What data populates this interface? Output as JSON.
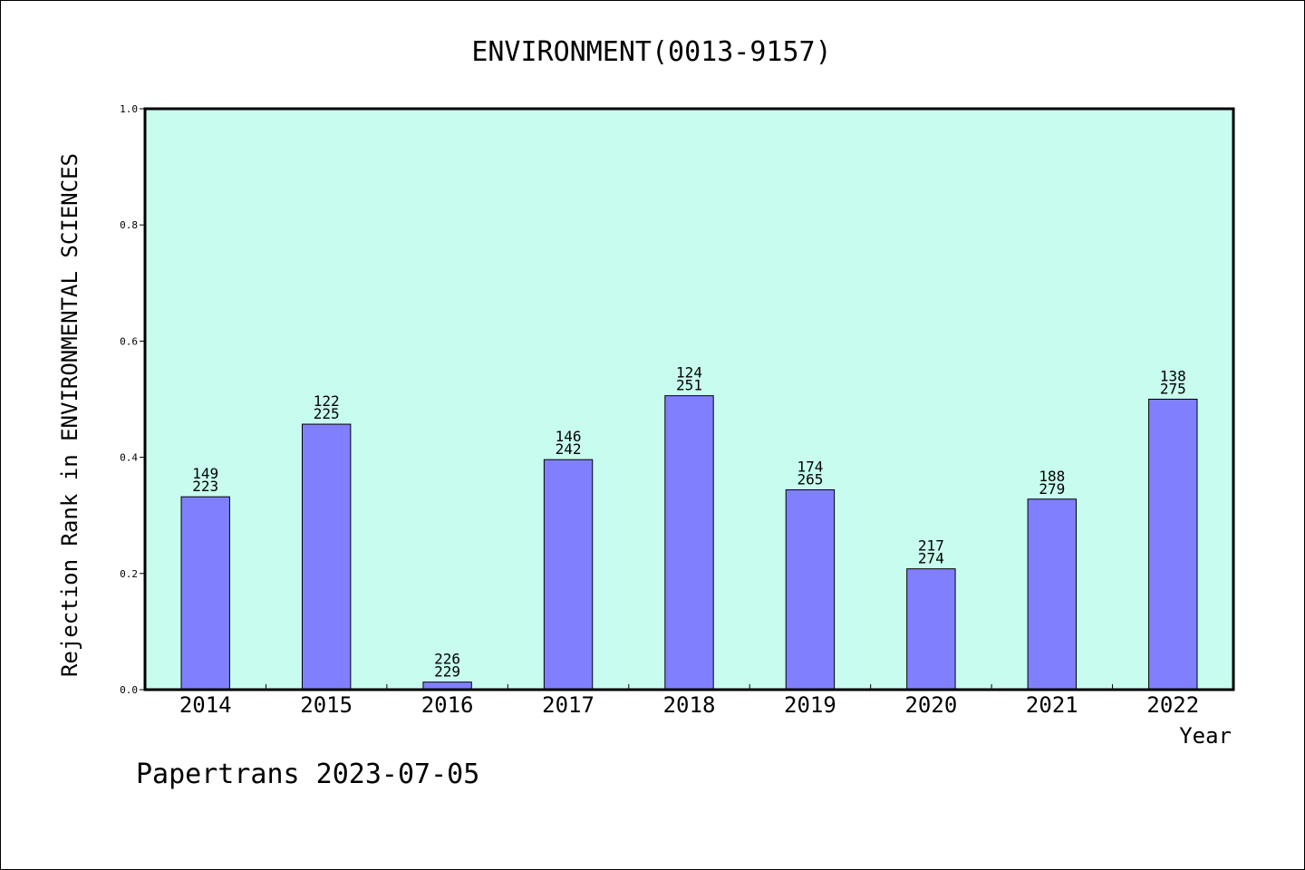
{
  "colors": {
    "plot_background": "#c8fcee",
    "bar_fill": "#8080ff",
    "bar_stroke": "#000000",
    "frame": "#000000"
  },
  "footer": "Papertrans 2023-07-05",
  "chart_data": {
    "type": "bar",
    "title": "ENVIRONMENT(0013-9157)",
    "xlabel": "Year",
    "ylabel": "Rejection Rank in ENVIRONMENTAL SCIENCES",
    "ylim": [
      0,
      1.0
    ],
    "yticks": [
      "0.0",
      "0.2",
      "0.4",
      "0.6",
      "0.8",
      "1.0"
    ],
    "grid": false,
    "categories": [
      "2014",
      "2015",
      "2016",
      "2017",
      "2018",
      "2019",
      "2020",
      "2021",
      "2022"
    ],
    "values": [
      0.332,
      0.457,
      0.013,
      0.396,
      0.506,
      0.344,
      0.208,
      0.328,
      0.5
    ],
    "labels_top": [
      "149",
      "122",
      "226",
      "146",
      "124",
      "174",
      "217",
      "188",
      "138"
    ],
    "labels_bottom": [
      "223",
      "225",
      "229",
      "242",
      "251",
      "265",
      "274",
      "279",
      "275"
    ]
  }
}
